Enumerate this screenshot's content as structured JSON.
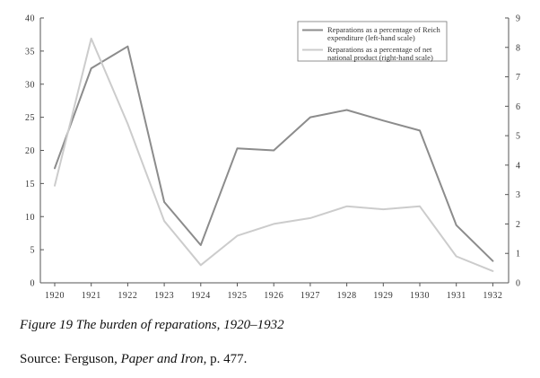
{
  "chart_data": {
    "type": "line",
    "x": [
      1920,
      1921,
      1922,
      1923,
      1924,
      1925,
      1926,
      1927,
      1928,
      1929,
      1930,
      1931,
      1932
    ],
    "series": [
      {
        "name": "Reparations as a percentage of Reich expenditure (left-hand scale)",
        "legend_lines": [
          "Reparations as a percentage of Reich",
          "expenditure (left-hand scale)"
        ],
        "axis": "left",
        "color": "#8c8c8c",
        "values": [
          17.3,
          32.4,
          35.7,
          12.2,
          5.7,
          20.3,
          20.0,
          25.0,
          26.1,
          24.5,
          23.0,
          8.7,
          3.3
        ]
      },
      {
        "name": "Reparations as a percentage of net national product (right-hand scale)",
        "legend_lines": [
          "Reparations as a percentage of net",
          "national product (right-hand scale)"
        ],
        "axis": "right",
        "color": "#cccccc",
        "values": [
          3.3,
          8.3,
          5.4,
          2.1,
          0.6,
          1.6,
          2.0,
          2.2,
          2.6,
          2.5,
          2.6,
          0.9,
          0.4
        ]
      }
    ],
    "x_tick_labels": [
      "1920",
      "1921",
      "1922",
      "1923",
      "1924",
      "1925",
      "1926",
      "1927",
      "1928",
      "1929",
      "1930",
      "1931",
      "1932"
    ],
    "y_left_ticks": [
      0,
      5,
      10,
      15,
      20,
      25,
      30,
      35,
      40
    ],
    "y_right_ticks": [
      0,
      1,
      2,
      3,
      4,
      5,
      6,
      7,
      8,
      9
    ],
    "ylim_left": [
      0,
      40
    ],
    "ylim_right": [
      0,
      9
    ],
    "grid": false,
    "legend_position": "top-right"
  },
  "caption": {
    "figure": "Figure 19 The burden of reparations, 1920–1932"
  },
  "source": {
    "prefix": "Source: Ferguson, ",
    "title": "Paper and Iron",
    "suffix": ", p. 477."
  }
}
